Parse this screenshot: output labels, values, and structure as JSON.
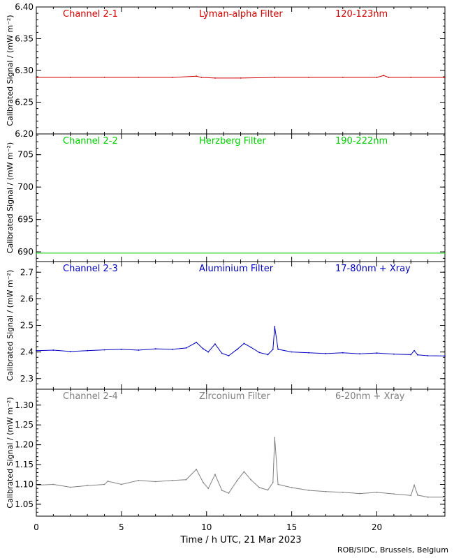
{
  "chart_data": [
    {
      "type": "line",
      "channel": "Channel 2-1",
      "filter": "Lyman-alpha Filter",
      "band": "120-123nm",
      "color": "#d00000",
      "ylabel": "Calibrated Signal / (mW m⁻²)",
      "ylim": [
        6.2,
        6.4
      ],
      "yticks": [
        "6.20",
        "6.25",
        "6.30",
        "6.35",
        "6.40"
      ],
      "x": [
        0,
        2,
        4,
        6,
        8,
        9.4,
        9.7,
        10.5,
        12,
        14,
        16,
        18,
        20,
        20.4,
        20.7,
        22,
        24
      ],
      "y": [
        6.289,
        6.289,
        6.289,
        6.289,
        6.289,
        6.291,
        6.289,
        6.288,
        6.288,
        6.289,
        6.289,
        6.289,
        6.289,
        6.292,
        6.289,
        6.289,
        6.289
      ]
    },
    {
      "type": "line",
      "channel": "Channel 2-2",
      "filter": "Herzberg Filter",
      "band": "190-222nm",
      "color": "#00cc00",
      "ylabel": "Calibrated Signal / (mW m⁻²)",
      "ylim": [
        688.5,
        708.2
      ],
      "yticks": [
        "690",
        "695",
        "700",
        "705"
      ],
      "x": [
        0,
        24
      ],
      "y": [
        689.8,
        689.8
      ]
    },
    {
      "type": "line",
      "channel": "Channel 2-3",
      "filter": "Aluminium Filter",
      "band": "17-80nm + Xray",
      "color": "#0000c0",
      "ylabel": "Calibrated Signal / (mW m⁻²)",
      "ylim": [
        2.26,
        2.74
      ],
      "yticks": [
        "2.3",
        "2.4",
        "2.5",
        "2.6",
        "2.7"
      ],
      "x": [
        0,
        1,
        2,
        3,
        4,
        5,
        6,
        7,
        8,
        8.8,
        9.4,
        9.8,
        10.1,
        10.5,
        10.9,
        11.3,
        11.8,
        12.2,
        12.6,
        13.1,
        13.6,
        13.9,
        14.0,
        14.2,
        15,
        16,
        17,
        18,
        19,
        20,
        21,
        22,
        22.2,
        22.4,
        23,
        24
      ],
      "y": [
        2.405,
        2.407,
        2.402,
        2.405,
        2.408,
        2.41,
        2.407,
        2.412,
        2.41,
        2.415,
        2.436,
        2.412,
        2.4,
        2.43,
        2.395,
        2.386,
        2.41,
        2.432,
        2.418,
        2.398,
        2.39,
        2.41,
        2.495,
        2.41,
        2.4,
        2.397,
        2.394,
        2.397,
        2.393,
        2.396,
        2.392,
        2.39,
        2.405,
        2.389,
        2.386,
        2.385
      ]
    },
    {
      "type": "line",
      "channel": "Channel 2-4",
      "filter": "Zirconium Filter",
      "band": "6-20nm + Xray",
      "color": "#808080",
      "ylabel": "Calibrated Signal / (mW m⁻²)",
      "ylim": [
        1.02,
        1.34
      ],
      "yticks": [
        "1.05",
        "1.10",
        "1.15",
        "1.20",
        "1.25",
        "1.30"
      ],
      "x": [
        0,
        1,
        2,
        3,
        4,
        4.2,
        5,
        6,
        7,
        8,
        8.8,
        9.4,
        9.8,
        10.1,
        10.5,
        10.9,
        11.3,
        11.8,
        12.2,
        12.6,
        13.1,
        13.6,
        13.9,
        14.0,
        14.2,
        15,
        16,
        17,
        18,
        19,
        20,
        21,
        22,
        22.2,
        22.4,
        23,
        24
      ],
      "y": [
        1.098,
        1.1,
        1.093,
        1.097,
        1.1,
        1.108,
        1.1,
        1.11,
        1.107,
        1.11,
        1.112,
        1.138,
        1.105,
        1.09,
        1.125,
        1.085,
        1.078,
        1.11,
        1.132,
        1.112,
        1.092,
        1.086,
        1.105,
        1.218,
        1.1,
        1.092,
        1.085,
        1.082,
        1.08,
        1.077,
        1.08,
        1.076,
        1.072,
        1.098,
        1.073,
        1.068,
        1.068
      ]
    }
  ],
  "xaxis": {
    "label": "Time / h UTC, 21 Mar 2023",
    "xlim": [
      0,
      24
    ],
    "ticks": [
      "0",
      "5",
      "10",
      "15",
      "20"
    ]
  },
  "credit": "ROB/SIDC, Brussels, Belgium"
}
